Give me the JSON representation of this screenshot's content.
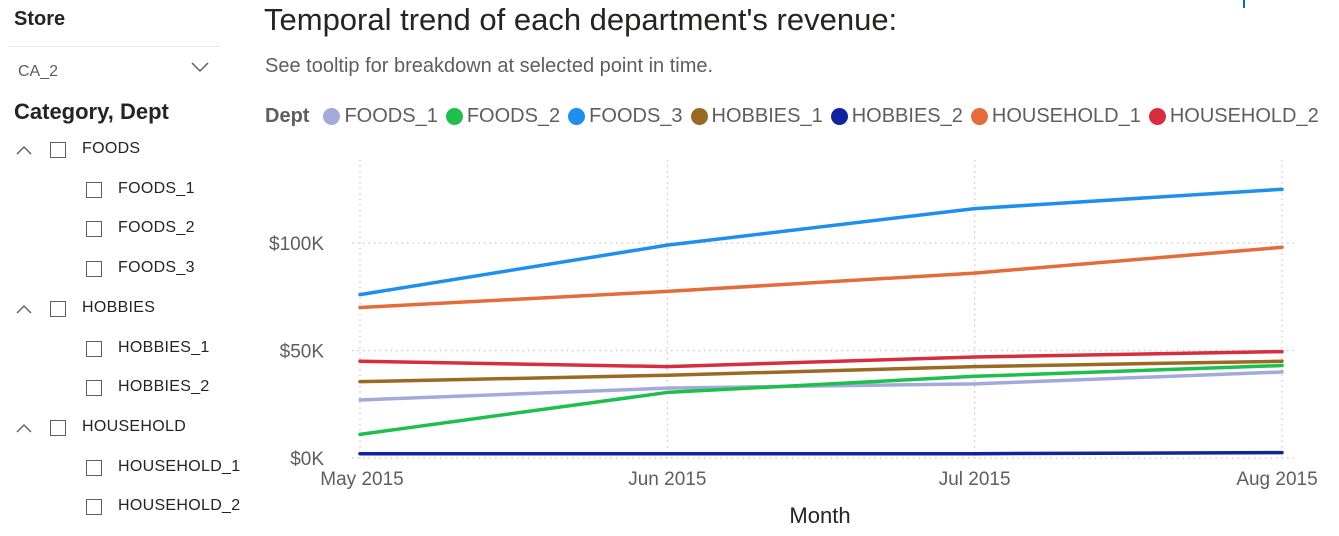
{
  "store": {
    "label": "Store",
    "selected": "CA_2"
  },
  "category_slicer": {
    "header": "Category, Dept",
    "groups": [
      {
        "label": "FOODS",
        "children": [
          "FOODS_1",
          "FOODS_2",
          "FOODS_3"
        ]
      },
      {
        "label": "HOBBIES",
        "children": [
          "HOBBIES_1",
          "HOBBIES_2"
        ]
      },
      {
        "label": "HOUSEHOLD",
        "children": [
          "HOUSEHOLD_1",
          "HOUSEHOLD_2"
        ]
      }
    ]
  },
  "visual": {
    "title": "Temporal trend of each department's revenue:",
    "subtitle": "See tooltip for breakdown at selected point in time."
  },
  "chart_data": {
    "type": "line",
    "x": [
      "May 2015",
      "Jun 2015",
      "Jul 2015",
      "Aug 2015"
    ],
    "xlabel": "Month",
    "ylabel": "",
    "yticks": [
      0,
      50000,
      100000
    ],
    "ytick_labels": [
      "$0K",
      "$50K",
      "$100K"
    ],
    "ylim": [
      0,
      135000
    ],
    "grid": true,
    "legend": {
      "title": "Dept",
      "position": "top-left"
    },
    "series": [
      {
        "name": "FOODS_1",
        "color": "#a4a9db",
        "values": [
          27000,
          32500,
          34500,
          40000
        ]
      },
      {
        "name": "FOODS_2",
        "color": "#1fbf4e",
        "values": [
          11000,
          30500,
          38000,
          43000
        ]
      },
      {
        "name": "FOODS_3",
        "color": "#1e8fed",
        "values": [
          76000,
          99000,
          116000,
          125000
        ]
      },
      {
        "name": "HOBBIES_1",
        "color": "#9b6a22",
        "values": [
          35500,
          38500,
          42500,
          45000
        ]
      },
      {
        "name": "HOBBIES_2",
        "color": "#12239e",
        "values": [
          2000,
          2000,
          2000,
          2500
        ]
      },
      {
        "name": "HOUSEHOLD_1",
        "color": "#e36c3a",
        "values": [
          70000,
          77500,
          86000,
          98000
        ]
      },
      {
        "name": "HOUSEHOLD_2",
        "color": "#d62e3e",
        "values": [
          45000,
          42500,
          47000,
          49500
        ]
      }
    ]
  }
}
